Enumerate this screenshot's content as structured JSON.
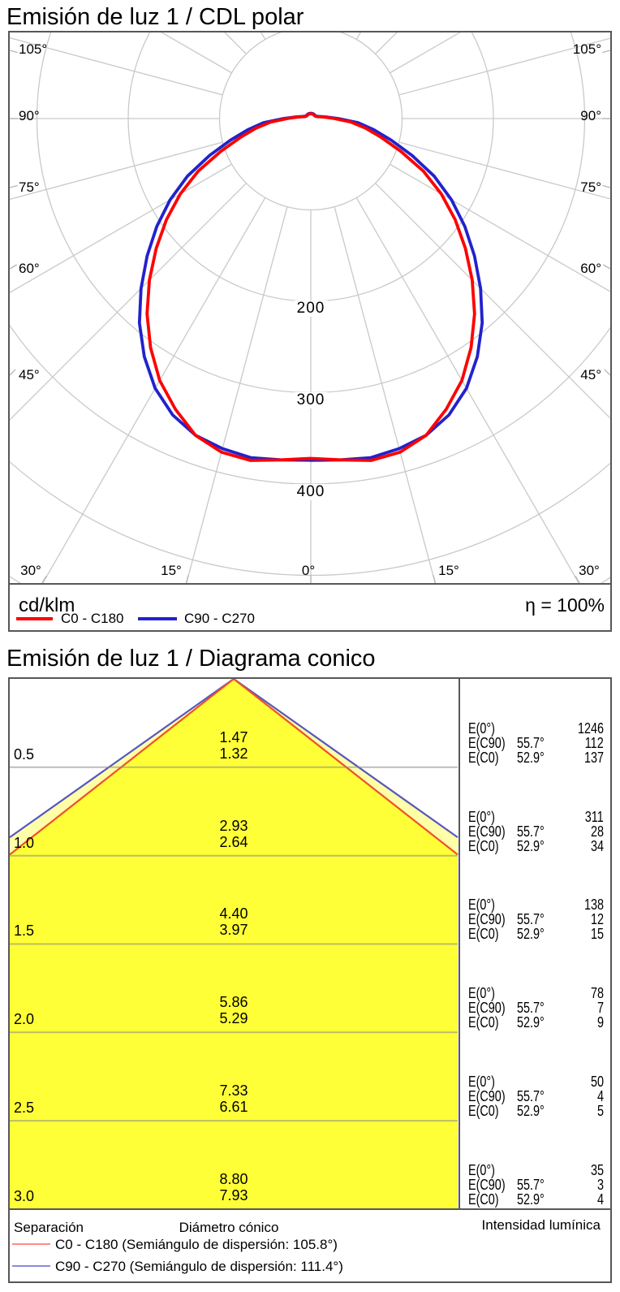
{
  "polar": {
    "unit_label": "cd/klm",
    "efficiency_label": "η = 100%",
    "angle_labels_left": [
      "105°",
      "90°",
      "75°",
      "60°",
      "45°"
    ],
    "angle_labels_right": [
      "105°",
      "90°",
      "75°",
      "60°",
      "45°"
    ],
    "angle_labels_bottom": [
      "30°",
      "15°",
      "0°",
      "15°",
      "30°"
    ],
    "ring_labels": [
      "200",
      "300",
      "400"
    ],
    "legend": [
      {
        "name": "C0 - C180",
        "color": "#ff0000"
      },
      {
        "name": "C90 - C270",
        "color": "#2222cc"
      }
    ]
  },
  "cone": {
    "header": {
      "separation": "Separación",
      "diameter": "Diámetro cónico",
      "intensity": "Intensidad lumínica"
    },
    "legend": [
      {
        "name": "C0 - C180 (Semiángulo de dispersión: 105.8°)",
        "color": "#ff8a8a"
      },
      {
        "name": "C90 - C270 (Semiángulo de dispersión: 111.4°)",
        "color": "#8a8ae0"
      }
    ]
  },
  "chart_data": [
    {
      "type": "line",
      "title": "Emisión de luz 1 / CDL polar",
      "coords": "polar",
      "unit": "cd/klm",
      "efficiency_percent": 100,
      "gamma_start_deg": 0,
      "gamma_step_deg": 5,
      "rings": [
        100,
        200,
        300,
        400,
        500,
        600
      ],
      "spoke_step_deg": 15,
      "series": [
        {
          "name": "C0 - C180",
          "color": "#ff0000",
          "values": [
            372,
            375,
            380,
            378,
            369,
            351,
            331,
            306,
            279,
            250,
            221,
            193,
            165,
            136,
            105,
            80,
            61,
            44,
            26,
            16,
            11,
            8,
            6.5,
            5.8,
            5.4,
            5.2,
            5.2,
            5.2,
            5.2,
            5.2,
            5.2,
            5.2,
            5.2,
            5.2,
            5.2,
            5.2,
            5.2
          ]
        },
        {
          "name": "C90 - C270",
          "color": "#2222cc",
          "values": [
            374,
            375,
            377,
            374,
            369,
            358,
            341,
            318,
            292,
            263,
            234,
            206,
            178,
            149,
            118,
            91,
            70,
            52,
            30,
            18,
            12.5,
            9,
            7.3,
            6.5,
            6.1,
            5.8,
            5.8,
            5.8,
            5.8,
            5.8,
            5.8,
            5.8,
            5.8,
            5.8,
            5.8,
            5.8,
            5.8
          ]
        }
      ]
    },
    {
      "type": "table",
      "title": "Emisión de luz 1 / Diagrama conico",
      "beam": {
        "c0_semiangle_deg": 52.9,
        "c90_semiangle_deg": 55.7,
        "c0_angle_label": "52.9°",
        "c90_angle_label": "55.7°"
      },
      "e_labels": {
        "e0": "E(0°)",
        "ec90": "E(C90)",
        "ec0": "E(C0)"
      },
      "rows": [
        {
          "separation_m": "0.5",
          "diameter_c90": "1.47",
          "diameter_c0": "1.32",
          "E0": "1246",
          "EC90": "112",
          "EC0": "137"
        },
        {
          "separation_m": "1.0",
          "diameter_c90": "2.93",
          "diameter_c0": "2.64",
          "E0": "311",
          "EC90": "28",
          "EC0": "34"
        },
        {
          "separation_m": "1.5",
          "diameter_c90": "4.40",
          "diameter_c0": "3.97",
          "E0": "138",
          "EC90": "12",
          "EC0": "15"
        },
        {
          "separation_m": "2.0",
          "diameter_c90": "5.86",
          "diameter_c0": "5.29",
          "E0": "78",
          "EC90": "7",
          "EC0": "9"
        },
        {
          "separation_m": "2.5",
          "diameter_c90": "7.33",
          "diameter_c0": "6.61",
          "E0": "50",
          "EC90": "4",
          "EC0": "5"
        },
        {
          "separation_m": "3.0",
          "diameter_c90": "8.80",
          "diameter_c0": "7.93",
          "E0": "35",
          "EC90": "3",
          "EC0": "4"
        }
      ],
      "cone_fill": "#ffff38",
      "cone_fill_outer": "#ffffa8",
      "edge_c0_color": "#ee512a",
      "edge_c90_color": "#5757bd"
    }
  ]
}
